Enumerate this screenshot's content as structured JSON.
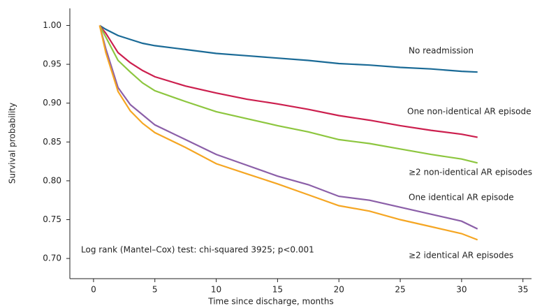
{
  "chart_data": {
    "type": "line",
    "x_label": "Time since discharge, months",
    "y_label": "Survival probability",
    "annotation": "Log rank (Mantel–Cox) test: chi-squared 3925; p<0.001",
    "x": [
      0.5,
      1,
      2,
      3,
      4,
      5,
      7.5,
      10,
      12.5,
      15,
      17.5,
      20,
      22.5,
      25,
      27.5,
      30,
      31.3
    ],
    "series": [
      {
        "name": "No readmission",
        "color": "#1a6a96",
        "values": [
          1.0,
          0.995,
          0.987,
          0.982,
          0.977,
          0.974,
          0.969,
          0.964,
          0.961,
          0.958,
          0.955,
          0.951,
          0.949,
          0.946,
          0.944,
          0.941,
          0.94
        ]
      },
      {
        "name": "One non-identical AR episode",
        "color": "#cc1f4e",
        "values": [
          1.0,
          0.99,
          0.965,
          0.952,
          0.942,
          0.934,
          0.922,
          0.913,
          0.905,
          0.899,
          0.892,
          0.884,
          0.878,
          0.871,
          0.865,
          0.86,
          0.856
        ]
      },
      {
        "name": "≥2 non-identical AR episodes",
        "color": "#8dc63f",
        "values": [
          1.0,
          0.985,
          0.955,
          0.94,
          0.926,
          0.916,
          0.902,
          0.889,
          0.88,
          0.871,
          0.863,
          0.853,
          0.848,
          0.841,
          0.834,
          0.828,
          0.823
        ]
      },
      {
        "name": "One identical AR episode",
        "color": "#8b5fa8",
        "values": [
          1.0,
          0.97,
          0.92,
          0.898,
          0.885,
          0.872,
          0.853,
          0.834,
          0.82,
          0.806,
          0.795,
          0.78,
          0.775,
          0.766,
          0.757,
          0.748,
          0.738
        ]
      },
      {
        "name": "≥2 identical AR episodes",
        "color": "#f5a623",
        "values": [
          1.0,
          0.965,
          0.915,
          0.89,
          0.874,
          0.862,
          0.843,
          0.822,
          0.809,
          0.796,
          0.782,
          0.768,
          0.761,
          0.75,
          0.741,
          0.732,
          0.724
        ]
      }
    ],
    "xlim": [
      -1.93,
      35.7
    ],
    "xticks": [
      0,
      5,
      10,
      15,
      20,
      25,
      30,
      35
    ],
    "ylim": [
      0.674,
      1.022
    ],
    "yticks": [
      {
        "value": 0.7,
        "label": "0.70"
      },
      {
        "value": 0.75,
        "label": "0.75"
      },
      {
        "value": 0.8,
        "label": "0.80"
      },
      {
        "value": 0.85,
        "label": "0.85"
      },
      {
        "value": 0.9,
        "label": "0.90"
      },
      {
        "value": 0.95,
        "label": "0.95"
      },
      {
        "value": 1.0,
        "label": "1.00"
      }
    ]
  }
}
